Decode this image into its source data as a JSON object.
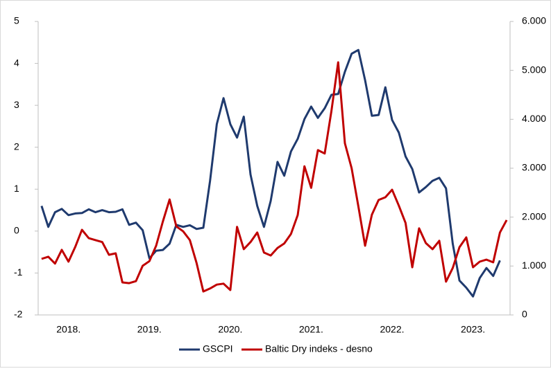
{
  "chart_data": {
    "type": "line",
    "categories": [
      null,
      null,
      null,
      null,
      "2018.",
      null,
      null,
      null,
      null,
      null,
      null,
      null,
      null,
      null,
      null,
      null,
      "2019.",
      null,
      null,
      null,
      null,
      null,
      null,
      null,
      null,
      null,
      null,
      null,
      "2020.",
      null,
      null,
      null,
      null,
      null,
      null,
      null,
      null,
      null,
      null,
      null,
      "2021.",
      null,
      null,
      null,
      null,
      null,
      null,
      null,
      null,
      null,
      null,
      null,
      "2022.",
      null,
      null,
      null,
      null,
      null,
      null,
      null,
      null,
      null,
      null,
      null,
      "2023.",
      null,
      null,
      null,
      null,
      null
    ],
    "series": [
      {
        "name": "GSCPI",
        "color": "#1f3a6e",
        "values": [
          0.6,
          0.1,
          0.45,
          0.53,
          0.38,
          0.42,
          0.43,
          0.52,
          0.45,
          0.5,
          0.45,
          0.46,
          0.52,
          0.15,
          0.2,
          0.02,
          -0.65,
          -0.47,
          -0.45,
          -0.3,
          0.15,
          0.1,
          0.14,
          0.05,
          0.08,
          1.2,
          2.55,
          3.17,
          2.55,
          2.23,
          2.73,
          1.35,
          0.6,
          0.1,
          0.72,
          1.65,
          1.32,
          1.9,
          2.2,
          2.67,
          2.97,
          2.7,
          2.93,
          3.25,
          3.27,
          3.8,
          4.23,
          4.32,
          3.6,
          2.75,
          2.77,
          3.43,
          2.65,
          2.35,
          1.78,
          1.48,
          0.92,
          1.05,
          1.2,
          1.27,
          1.02,
          -0.3,
          -1.18,
          -1.35,
          -1.56,
          -1.12,
          -0.88,
          -1.07,
          -0.7,
          null
        ]
      },
      {
        "name": "Baltic Dry indeks - desno",
        "color": "#c00000",
        "axis": "y2",
        "values": [
          1146,
          1190,
          1050,
          1330,
          1090,
          1390,
          1740,
          1570,
          1530,
          1490,
          1230,
          1260,
          665,
          650,
          690,
          1005,
          1100,
          1415,
          1910,
          2360,
          1810,
          1710,
          1530,
          1060,
          480,
          540,
          620,
          640,
          510,
          1800,
          1345,
          1490,
          1685,
          1275,
          1215,
          1370,
          1460,
          1655,
          2040,
          3040,
          2600,
          3370,
          3300,
          4170,
          5165,
          3510,
          3000,
          2220,
          1415,
          2050,
          2350,
          2405,
          2560,
          2235,
          1880,
          975,
          1770,
          1470,
          1345,
          1515,
          680,
          960,
          1385,
          1585,
          975,
          1090,
          1130,
          1075,
          1685,
          1940
        ]
      }
    ],
    "ylim": [
      -2,
      5
    ],
    "yticks": [
      -2,
      -1,
      0,
      1,
      2,
      3,
      4,
      5
    ],
    "y2lim": [
      0,
      6000
    ],
    "y2ticks": [
      0,
      {
        "value": 1000,
        "label": "1.000"
      },
      {
        "value": 2000,
        "label": "2.000"
      },
      {
        "value": 3000,
        "label": "3.000"
      },
      {
        "value": 4000,
        "label": "4.000"
      },
      {
        "value": 5000,
        "label": "5.000"
      },
      {
        "value": 6000,
        "label": "6.000"
      }
    ],
    "legend": "bottom"
  }
}
